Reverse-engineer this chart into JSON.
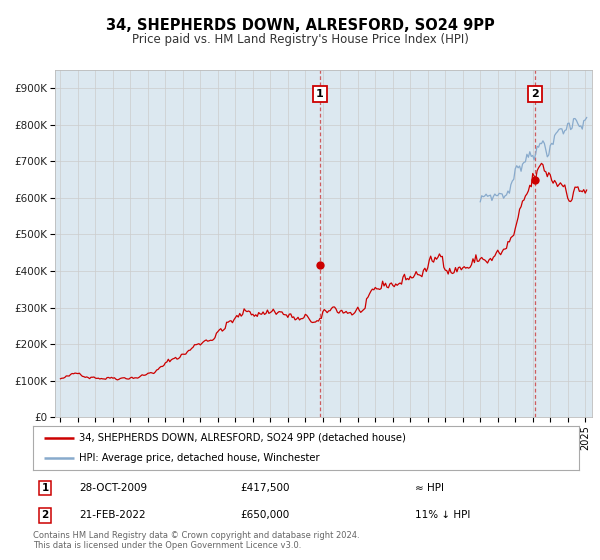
{
  "title": "34, SHEPHERDS DOWN, ALRESFORD, SO24 9PP",
  "subtitle": "Price paid vs. HM Land Registry's House Price Index (HPI)",
  "plot_bg_color": "#dce8f0",
  "red_line_color": "#cc0000",
  "blue_line_color": "#88aacc",
  "annotation1_date": "28-OCT-2009",
  "annotation1_price": "£417,500",
  "annotation1_hpi": "≈ HPI",
  "annotation2_date": "21-FEB-2022",
  "annotation2_price": "£650,000",
  "annotation2_hpi": "11% ↓ HPI",
  "legend_label_red": "34, SHEPHERDS DOWN, ALRESFORD, SO24 9PP (detached house)",
  "legend_label_blue": "HPI: Average price, detached house, Winchester",
  "footer": "Contains HM Land Registry data © Crown copyright and database right 2024.\nThis data is licensed under the Open Government Licence v3.0.",
  "ylabel_ticks": [
    "£0",
    "£100K",
    "£200K",
    "£300K",
    "£400K",
    "£500K",
    "£600K",
    "£700K",
    "£800K",
    "£900K"
  ],
  "ylabel_values": [
    0,
    100000,
    200000,
    300000,
    400000,
    500000,
    600000,
    700000,
    800000,
    900000
  ],
  "ylim": [
    0,
    950000
  ],
  "xlim_start": 1994.7,
  "xlim_end": 2025.4,
  "marker1_x": 2009.82,
  "marker1_y": 417500,
  "marker2_x": 2022.12,
  "marker2_y": 650000,
  "vline1_x": 2009.82,
  "vline2_x": 2022.12,
  "red_seed": 42,
  "blue_seed": 7
}
